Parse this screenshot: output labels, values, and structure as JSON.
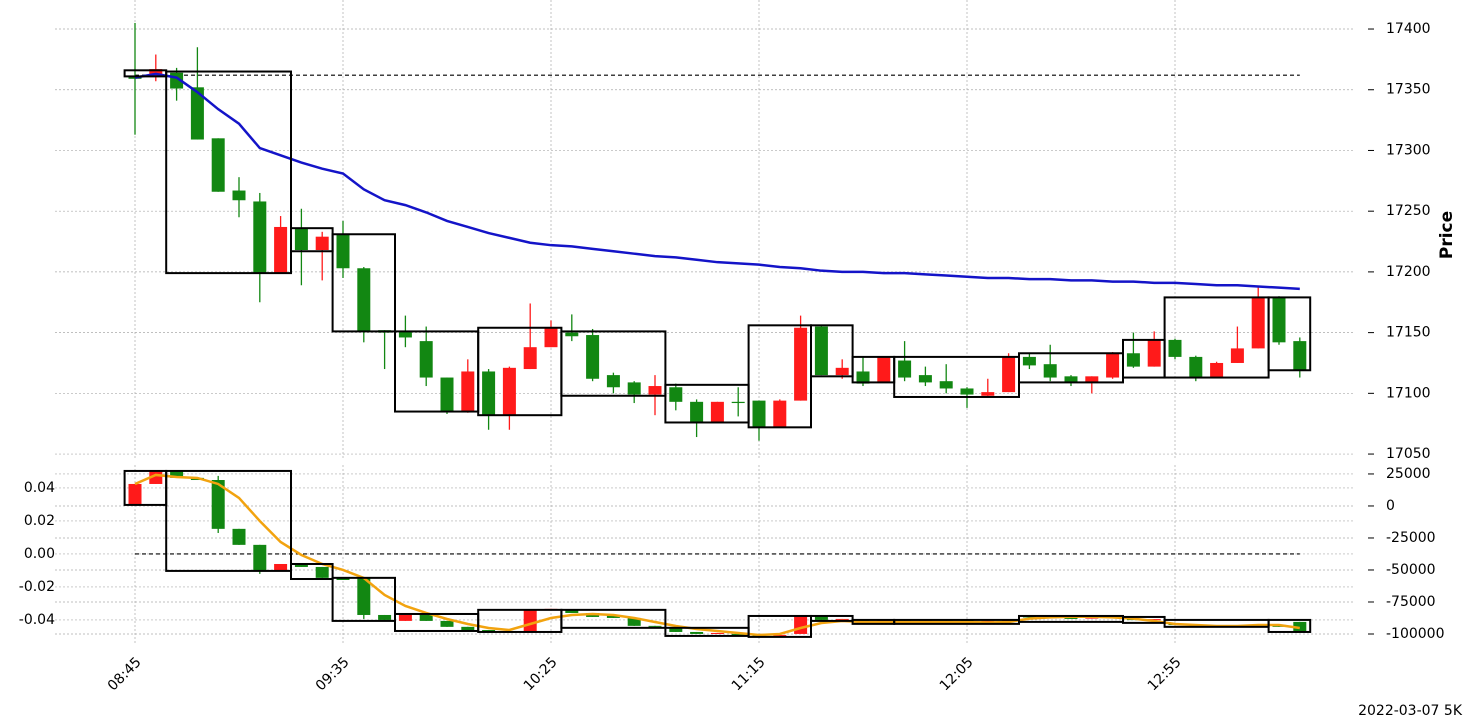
{
  "footer": "2022-03-07 5K",
  "chart_data": [
    {
      "type": "candlestick",
      "ylabel": "Price",
      "categories": [
        "08:45",
        null,
        null,
        null,
        null,
        null,
        null,
        null,
        null,
        null,
        "09:35",
        null,
        null,
        null,
        null,
        null,
        null,
        null,
        null,
        null,
        "10:25",
        null,
        null,
        null,
        null,
        null,
        null,
        null,
        null,
        null,
        "11:15",
        null,
        null,
        null,
        null,
        null,
        null,
        null,
        null,
        null,
        "12:05",
        null,
        null,
        null,
        null,
        null,
        null,
        null,
        null,
        null,
        "12:55",
        null,
        null,
        null,
        null,
        null,
        null
      ],
      "up_color": "#ff1a1a",
      "down_color": "#128712",
      "ylim": [
        17045.1,
        17423.9
      ],
      "yticks": [
        17050,
        17100,
        17150,
        17200,
        17250,
        17300,
        17350,
        17400
      ],
      "grid": true,
      "open": [
        17361,
        17361,
        17364,
        17352,
        17310,
        17267,
        17258,
        17199,
        17236,
        17218,
        17231,
        17203,
        17152,
        17151,
        17143,
        17113,
        17085,
        17118,
        17082,
        17120,
        17138,
        17150,
        17148,
        17115,
        17109,
        17099,
        17105,
        17093,
        17076,
        17093,
        17094,
        17072,
        17094,
        17155,
        17115,
        17118,
        17109,
        17127,
        17115,
        17110,
        17104,
        17098,
        17101,
        17130,
        17124,
        17114,
        17109,
        17113,
        17133,
        17122,
        17144,
        17130,
        17113,
        17125,
        17137,
        17179,
        17143
      ],
      "high": [
        17405,
        17379,
        17368,
        17385,
        17310,
        17278,
        17265,
        17246,
        17252,
        17233,
        17242,
        17204,
        17152,
        17164,
        17155,
        17113,
        17128,
        17120,
        17122,
        17174,
        17160,
        17165,
        17153,
        17117,
        17110,
        17115,
        17108,
        17095,
        17093,
        17105,
        17094,
        17095,
        17164,
        17156,
        17128,
        17130,
        17130,
        17143,
        17122,
        17124,
        17105,
        17112,
        17133,
        17133,
        17140,
        17115,
        17114,
        17134,
        17150,
        17151,
        17145,
        17131,
        17126,
        17155,
        17188,
        17180,
        17146
      ],
      "low": [
        17313,
        17357,
        17341,
        17309,
        17266,
        17245,
        17175,
        17199,
        17189,
        17193,
        17195,
        17142,
        17120,
        17138,
        17106,
        17083,
        17084,
        17070,
        17070,
        17120,
        17138,
        17143,
        17110,
        17100,
        17092,
        17082,
        17086,
        17064,
        17076,
        17081,
        17061,
        17072,
        17094,
        17115,
        17112,
        17106,
        17109,
        17110,
        17106,
        17100,
        17088,
        17097,
        17101,
        17120,
        17110,
        17106,
        17100,
        17112,
        17121,
        17122,
        17128,
        17110,
        17113,
        17125,
        17137,
        17140,
        17113
      ],
      "close": [
        17359,
        17367,
        17351,
        17309,
        17266,
        17259,
        17199,
        17237,
        17218,
        17229,
        17203,
        17151,
        17150,
        17146,
        17113,
        17085,
        17118,
        17082,
        17121,
        17138,
        17154,
        17147,
        17112,
        17105,
        17099,
        17106,
        17093,
        17076,
        17093,
        17092,
        17072,
        17094,
        17154,
        17115,
        17121,
        17108,
        17130,
        17113,
        17109,
        17104,
        17099,
        17101,
        17130,
        17123,
        17113,
        17109,
        17114,
        17133,
        17122,
        17144,
        17130,
        17113,
        17125,
        17137,
        17179,
        17142,
        17119
      ],
      "lines": [
        {
          "color": "#1414c8",
          "values": [
            17360,
            17363,
            17360,
            17348,
            17334,
            17322,
            17302,
            17296,
            17290,
            17285,
            17281,
            17268,
            17259,
            17255,
            17249,
            17242,
            17237,
            17232,
            17228,
            17224,
            17222,
            17221,
            17219,
            17217,
            17215,
            17213,
            17212,
            17210,
            17208,
            17207,
            17206,
            17204,
            17203,
            17201,
            17200,
            17200,
            17199,
            17199,
            17198,
            17197,
            17196,
            17195,
            17195,
            17194,
            17194,
            17193,
            17193,
            17192,
            17192,
            17191,
            17191,
            17190,
            17189,
            17189,
            17188,
            17187,
            17186
          ]
        }
      ],
      "hline": 17362,
      "boxes": [
        {
          "from": 0,
          "to": 1,
          "top": 17366,
          "bottom": 17361
        },
        {
          "from": 2,
          "to": 7,
          "top": 17365,
          "bottom": 17199
        },
        {
          "from": 8,
          "to": 9,
          "top": 17236,
          "bottom": 17217
        },
        {
          "from": 10,
          "to": 12,
          "top": 17231,
          "bottom": 17151
        },
        {
          "from": 13,
          "to": 16,
          "top": 17151,
          "bottom": 17085
        },
        {
          "from": 17,
          "to": 20,
          "top": 17154,
          "bottom": 17082
        },
        {
          "from": 21,
          "to": 25,
          "top": 17151,
          "bottom": 17098
        },
        {
          "from": 26,
          "to": 29,
          "top": 17107,
          "bottom": 17076
        },
        {
          "from": 30,
          "to": 32,
          "top": 17156,
          "bottom": 17072
        },
        {
          "from": 33,
          "to": 34,
          "top": 17156,
          "bottom": 17114
        },
        {
          "from": 35,
          "to": 36,
          "top": 17130,
          "bottom": 17109
        },
        {
          "from": 37,
          "to": 42,
          "top": 17130,
          "bottom": 17097
        },
        {
          "from": 43,
          "to": 47,
          "top": 17133,
          "bottom": 17109
        },
        {
          "from": 48,
          "to": 49,
          "top": 17144,
          "bottom": 17113
        },
        {
          "from": 50,
          "to": 54,
          "top": 17179,
          "bottom": 17113
        },
        {
          "from": 55,
          "to": 56,
          "top": 17179,
          "bottom": 17119
        }
      ]
    },
    {
      "type": "candlestick",
      "up_color": "#ff1a1a",
      "down_color": "#128712",
      "ylim": [
        -0.0552,
        0.0539
      ],
      "yticks": [
        -0.04,
        -0.02,
        {
          "value": 0,
          "label": "0.00"
        },
        0.02,
        0.04
      ],
      "y2lim": [
        -108600,
        32000
      ],
      "y2ticks": [
        -100000,
        -75000,
        -50000,
        -25000,
        0,
        25000
      ],
      "grid": true,
      "open": [
        0.0297,
        0.0424,
        0.0503,
        0.0461,
        0.0448,
        0.0152,
        0.0055,
        -0.0103,
        -0.0061,
        -0.0079,
        -0.0145,
        -0.0145,
        -0.037,
        -0.0406,
        -0.037,
        -0.0406,
        -0.0442,
        -0.0461,
        -0.0467,
        -0.0473,
        -0.0339,
        -0.0339,
        -0.0358,
        -0.037,
        -0.0388,
        -0.0436,
        -0.0448,
        -0.0473,
        -0.0485,
        -0.0485,
        -0.0491,
        -0.0497,
        -0.0485,
        -0.0376,
        -0.04,
        -0.04,
        -0.0412,
        -0.0405,
        -0.041,
        -0.0405,
        -0.0402,
        -0.041,
        -0.0406,
        -0.0378,
        -0.0385,
        -0.0388,
        -0.0392,
        -0.0386,
        -0.0395,
        -0.04,
        -0.0425,
        -0.043,
        -0.0436,
        -0.0432,
        -0.0438,
        -0.043,
        -0.0412
      ],
      "high": [
        0.0424,
        0.0503,
        0.0503,
        0.0461,
        0.0473,
        0.0152,
        0.0055,
        -0.0061,
        -0.0061,
        -0.0079,
        -0.0145,
        -0.0145,
        -0.037,
        -0.037,
        -0.037,
        -0.0406,
        -0.0442,
        -0.0461,
        -0.0467,
        -0.0339,
        -0.0333,
        -0.0339,
        -0.0358,
        -0.037,
        -0.0388,
        -0.0436,
        -0.0448,
        -0.0473,
        -0.0479,
        -0.0485,
        -0.0491,
        -0.0491,
        -0.0376,
        -0.0376,
        -0.0394,
        -0.04,
        -0.04,
        -0.0405,
        -0.0405,
        -0.0405,
        -0.0402,
        -0.0406,
        -0.04,
        -0.0378,
        -0.0385,
        -0.0388,
        -0.0386,
        -0.0383,
        -0.0395,
        -0.0395,
        -0.0425,
        -0.043,
        -0.0432,
        -0.0432,
        -0.0432,
        -0.043,
        -0.0412
      ],
      "low": [
        0.0297,
        0.0424,
        0.0461,
        0.0448,
        0.0127,
        0.0055,
        -0.0121,
        -0.0103,
        -0.0079,
        -0.0145,
        -0.0158,
        -0.0394,
        -0.04,
        -0.0406,
        -0.0406,
        -0.0442,
        -0.0461,
        -0.0467,
        -0.0473,
        -0.0473,
        -0.0339,
        -0.0358,
        -0.0382,
        -0.0388,
        -0.0436,
        -0.0442,
        -0.0473,
        -0.0485,
        -0.0485,
        -0.0491,
        -0.0497,
        -0.0497,
        -0.0485,
        -0.04,
        -0.04,
        -0.0412,
        -0.0412,
        -0.041,
        -0.041,
        -0.041,
        -0.041,
        -0.041,
        -0.0406,
        -0.0385,
        -0.0388,
        -0.0392,
        -0.0392,
        -0.0386,
        -0.04,
        -0.04,
        -0.043,
        -0.0436,
        -0.0436,
        -0.0438,
        -0.0438,
        -0.0442,
        -0.0473
      ],
      "close": [
        0.0424,
        0.0503,
        0.0461,
        0.0448,
        0.0152,
        0.0055,
        -0.0103,
        -0.0061,
        -0.0079,
        -0.0145,
        -0.0158,
        -0.037,
        -0.04,
        -0.037,
        -0.0406,
        -0.0442,
        -0.0461,
        -0.0467,
        -0.0473,
        -0.0339,
        -0.0333,
        -0.0358,
        -0.0382,
        -0.0388,
        -0.0436,
        -0.0442,
        -0.0473,
        -0.0485,
        -0.0479,
        -0.0491,
        -0.0497,
        -0.0491,
        -0.0376,
        -0.04,
        -0.0394,
        -0.0412,
        -0.04,
        -0.041,
        -0.0405,
        -0.041,
        -0.041,
        -0.0406,
        -0.04,
        -0.0385,
        -0.0388,
        -0.0392,
        -0.0386,
        -0.0383,
        -0.04,
        -0.0395,
        -0.043,
        -0.0436,
        -0.0432,
        -0.0438,
        -0.0432,
        -0.0442,
        -0.0473
      ],
      "lines": [
        {
          "color": "#f2a30f",
          "axis": "y2",
          "values": [
            17188,
            24219,
            22656,
            21875,
            17188,
            6250,
            -11719,
            -28125,
            -38281,
            -45313,
            -50000,
            -56250,
            -69531,
            -78125,
            -83594,
            -88281,
            -92188,
            -95313,
            -96875,
            -92188,
            -87500,
            -85156,
            -84375,
            -85156,
            -87500,
            -90625,
            -93750,
            -96094,
            -97656,
            -99219,
            -100781,
            -100000,
            -95313,
            -91406,
            -89844,
            -90625,
            -90625,
            -90625,
            -90625,
            -90625,
            -90625,
            -91000,
            -90625,
            -88000,
            -87000,
            -86500,
            -86500,
            -87000,
            -88000,
            -89844,
            -92188,
            -92969,
            -93750,
            -93750,
            -93000,
            -93000,
            -95313
          ]
        }
      ],
      "hline": 0,
      "boxes": [
        {
          "from": 0,
          "to": 1,
          "top": 0.0503,
          "bottom": 0.0297
        },
        {
          "from": 2,
          "to": 7,
          "top": 0.0503,
          "bottom": -0.0103
        },
        {
          "from": 8,
          "to": 9,
          "top": -0.0061,
          "bottom": -0.0152
        },
        {
          "from": 10,
          "to": 12,
          "top": -0.0145,
          "bottom": -0.0406
        },
        {
          "from": 13,
          "to": 16,
          "top": -0.0364,
          "bottom": -0.0467
        },
        {
          "from": 17,
          "to": 20,
          "top": -0.0339,
          "bottom": -0.0473
        },
        {
          "from": 21,
          "to": 25,
          "top": -0.0339,
          "bottom": -0.0448
        },
        {
          "from": 26,
          "to": 29,
          "top": -0.0448,
          "bottom": -0.0497
        },
        {
          "from": 30,
          "to": 32,
          "top": -0.0376,
          "bottom": -0.0503
        },
        {
          "from": 33,
          "to": 34,
          "top": -0.0376,
          "bottom": -0.0406
        },
        {
          "from": 35,
          "to": 36,
          "top": -0.04,
          "bottom": -0.0424
        },
        {
          "from": 37,
          "to": 42,
          "top": -0.04,
          "bottom": -0.0424
        },
        {
          "from": 43,
          "to": 47,
          "top": -0.0376,
          "bottom": -0.0412
        },
        {
          "from": 48,
          "to": 49,
          "top": -0.0382,
          "bottom": -0.0418
        },
        {
          "from": 50,
          "to": 54,
          "top": -0.04,
          "bottom": -0.0442
        },
        {
          "from": 55,
          "to": 56,
          "top": -0.04,
          "bottom": -0.0473
        }
      ]
    }
  ]
}
